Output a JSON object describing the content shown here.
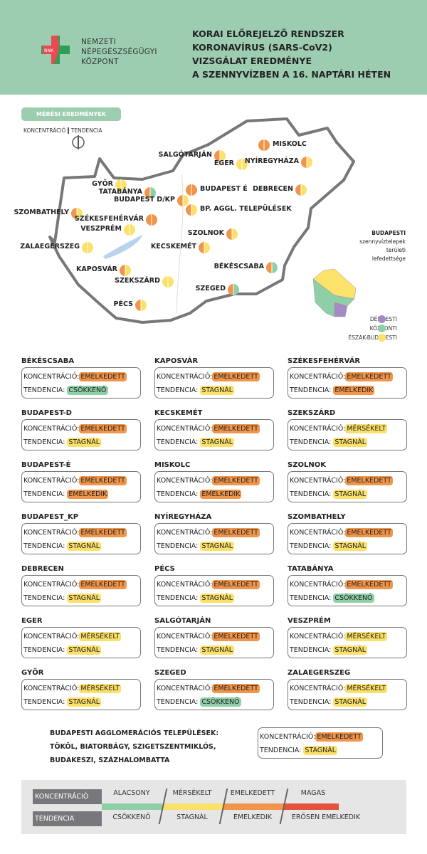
{
  "header": {
    "org_lines": [
      "NEMZETI",
      "NÉPEGÉSZSÉGÜGYI",
      "KÖZPONT"
    ],
    "logo_text": "NNK",
    "title_lines": [
      "KORAI ELŐREJELZŐ RENDSZER",
      "KORONAVÍRUS (SARS-CoV2)",
      "VIZSGÁLAT EREDMÉNYE",
      "A SZENNYVÍZBEN A 16. NAPTÁRI HÉTEN"
    ]
  },
  "map": {
    "section_label": "MÉRÉSI EREDMÉNYEK",
    "key_concentration": "KONCENTRÁCIÓ",
    "key_tendency": "TENDENCIA",
    "cities": [
      {
        "name": "MISKOLC",
        "c": "orange",
        "t": "orange"
      },
      {
        "name": "SALGÓTARJÁN",
        "c": "orange",
        "t": "yellow"
      },
      {
        "name": "EGER",
        "c": "yellow",
        "t": "yellow"
      },
      {
        "name": "NYÍREGYHÁZA",
        "c": "orange",
        "t": "yellow"
      },
      {
        "name": "GYŐR",
        "c": "yellow",
        "t": "yellow"
      },
      {
        "name": "TATABÁNYA",
        "c": "orange",
        "t": "green"
      },
      {
        "name": "BUDAPEST É",
        "c": "orange",
        "t": "orange"
      },
      {
        "name": "BUDAPEST D/KP",
        "c": "orange",
        "t": "yellow"
      },
      {
        "name": "BP. AGGL. TELEPÜLÉSEK",
        "c": "orange",
        "t": "yellow"
      },
      {
        "name": "DEBRECEN",
        "c": "orange",
        "t": "yellow"
      },
      {
        "name": "SZOMBATHELY",
        "c": "orange",
        "t": "yellow"
      },
      {
        "name": "SZÉKESFEHÉRVÁR",
        "c": "orange",
        "t": "orange"
      },
      {
        "name": "VESZPRÉM",
        "c": "yellow",
        "t": "yellow"
      },
      {
        "name": "ZALAEGERSZEG",
        "c": "yellow",
        "t": "yellow"
      },
      {
        "name": "SZOLNOK",
        "c": "orange",
        "t": "yellow"
      },
      {
        "name": "KECSKEMÉT",
        "c": "orange",
        "t": "yellow"
      },
      {
        "name": "KAPOSVÁR",
        "c": "orange",
        "t": "yellow"
      },
      {
        "name": "BÉKÉSCSABA",
        "c": "orange",
        "t": "green"
      },
      {
        "name": "SZEKSZÁRD",
        "c": "yellow",
        "t": "yellow"
      },
      {
        "name": "SZEGED",
        "c": "orange",
        "t": "green"
      },
      {
        "name": "PÉCS",
        "c": "orange",
        "t": "yellow"
      }
    ],
    "bp_legend_title": [
      "BUDAPESTI",
      "szennyvíztelepek",
      "területi",
      "lefedettsége"
    ],
    "bp_legend": [
      {
        "label": "DÉL-PESTI",
        "color": "#a58bc6"
      },
      {
        "label": "KÖZPONTI",
        "color": "#8fcfa8"
      },
      {
        "label": "ÉSZAK-BUDAPESTI",
        "color": "#fbe36c"
      }
    ]
  },
  "colors": {
    "orange": "#f0954a",
    "yellow": "#fbe06a",
    "green": "#8fcfa8",
    "red": "#e4533b",
    "header": "#9dcdb1"
  },
  "cards": {
    "k_label": "KONCENTRÁCIÓ:",
    "t_label": "TENDENCIA:",
    "items": [
      {
        "name": "BÉKÉSCSABA",
        "k": "EMELKEDETT",
        "t": "CSÖKKENŐ"
      },
      {
        "name": "KAPOSVÁR",
        "k": "EMELKEDETT",
        "t": "STAGNÁL"
      },
      {
        "name": "SZÉKESFEHÉRVÁR",
        "k": "EMELKEDETT",
        "t": "EMELKEDIK"
      },
      {
        "name": "BUDAPEST-D",
        "k": "EMELKEDETT",
        "t": "STAGNÁL"
      },
      {
        "name": "KECSKEMÉT",
        "k": "EMELKEDETT",
        "t": "STAGNÁL"
      },
      {
        "name": "SZEKSZÁRD",
        "k": "MÉRSÉKELT",
        "t": "STAGNÁL"
      },
      {
        "name": "BUDAPEST-É",
        "k": "EMELKEDETT",
        "t": "EMELKEDIK"
      },
      {
        "name": "MISKOLC",
        "k": "EMELKEDETT",
        "t": "EMELKEDIK"
      },
      {
        "name": "SZOLNOK",
        "k": "EMELKEDETT",
        "t": "STAGNÁL"
      },
      {
        "name": "BUDAPEST_KP",
        "k": "EMELKEDETT",
        "t": "STAGNÁL"
      },
      {
        "name": "NYÍREGYHÁZA",
        "k": "EMELKEDETT",
        "t": "STAGNÁL"
      },
      {
        "name": "SZOMBATHELY",
        "k": "EMELKEDETT",
        "t": "STAGNÁL"
      },
      {
        "name": "DEBRECEN",
        "k": "EMELKEDETT",
        "t": "STAGNÁL"
      },
      {
        "name": "PÉCS",
        "k": "EMELKEDETT",
        "t": "STAGNÁL"
      },
      {
        "name": "TATABÁNYA",
        "k": "EMELKEDETT",
        "t": "CSÖKKENŐ"
      },
      {
        "name": "EGER",
        "k": "MÉRSÉKELT",
        "t": "STAGNÁL"
      },
      {
        "name": "SALGÓTARJÁN",
        "k": "EMELKEDETT",
        "t": "STAGNÁL"
      },
      {
        "name": "VESZPRÉM",
        "k": "MÉRSÉKELT",
        "t": "STAGNÁL"
      },
      {
        "name": "GYŐR",
        "k": "MÉRSÉKELT",
        "t": "STAGNÁL"
      },
      {
        "name": "SZEGED",
        "k": "EMELKEDETT",
        "t": "CSÖKKENŐ"
      },
      {
        "name": "ZALAEGERSZEG",
        "k": "MÉRSÉKELT",
        "t": "STAGNÁL"
      }
    ]
  },
  "agglomeration": {
    "lines": [
      "BUDAPESTI AGGLOMERÁCIÓS TELEPÜLÉSEK:",
      "TÖKÖL, BIATORBÁGY, SZIGETSZENTMIKLÓS,",
      "BUDAKESZI, SZÁZHALOMBATTA"
    ],
    "k": "EMELKEDETT",
    "t": "STAGNÁL"
  },
  "scale": {
    "k_label": "KONCENTRÁCIÓ",
    "t_label": "TENDENCIA",
    "levels": [
      {
        "k": "ALACSONY",
        "t": "CSÖKKENŐ",
        "color": "#8fcfa8"
      },
      {
        "k": "MÉRSÉKELT",
        "t": "STAGNÁL",
        "color": "#fbe06a"
      },
      {
        "k": "EMELKEDETT",
        "t": "EMELKEDIK",
        "color": "#f0954a"
      },
      {
        "k": "MAGAS",
        "t": "ERŐSEN EMELKEDIK",
        "color": "#e4533b"
      }
    ]
  }
}
